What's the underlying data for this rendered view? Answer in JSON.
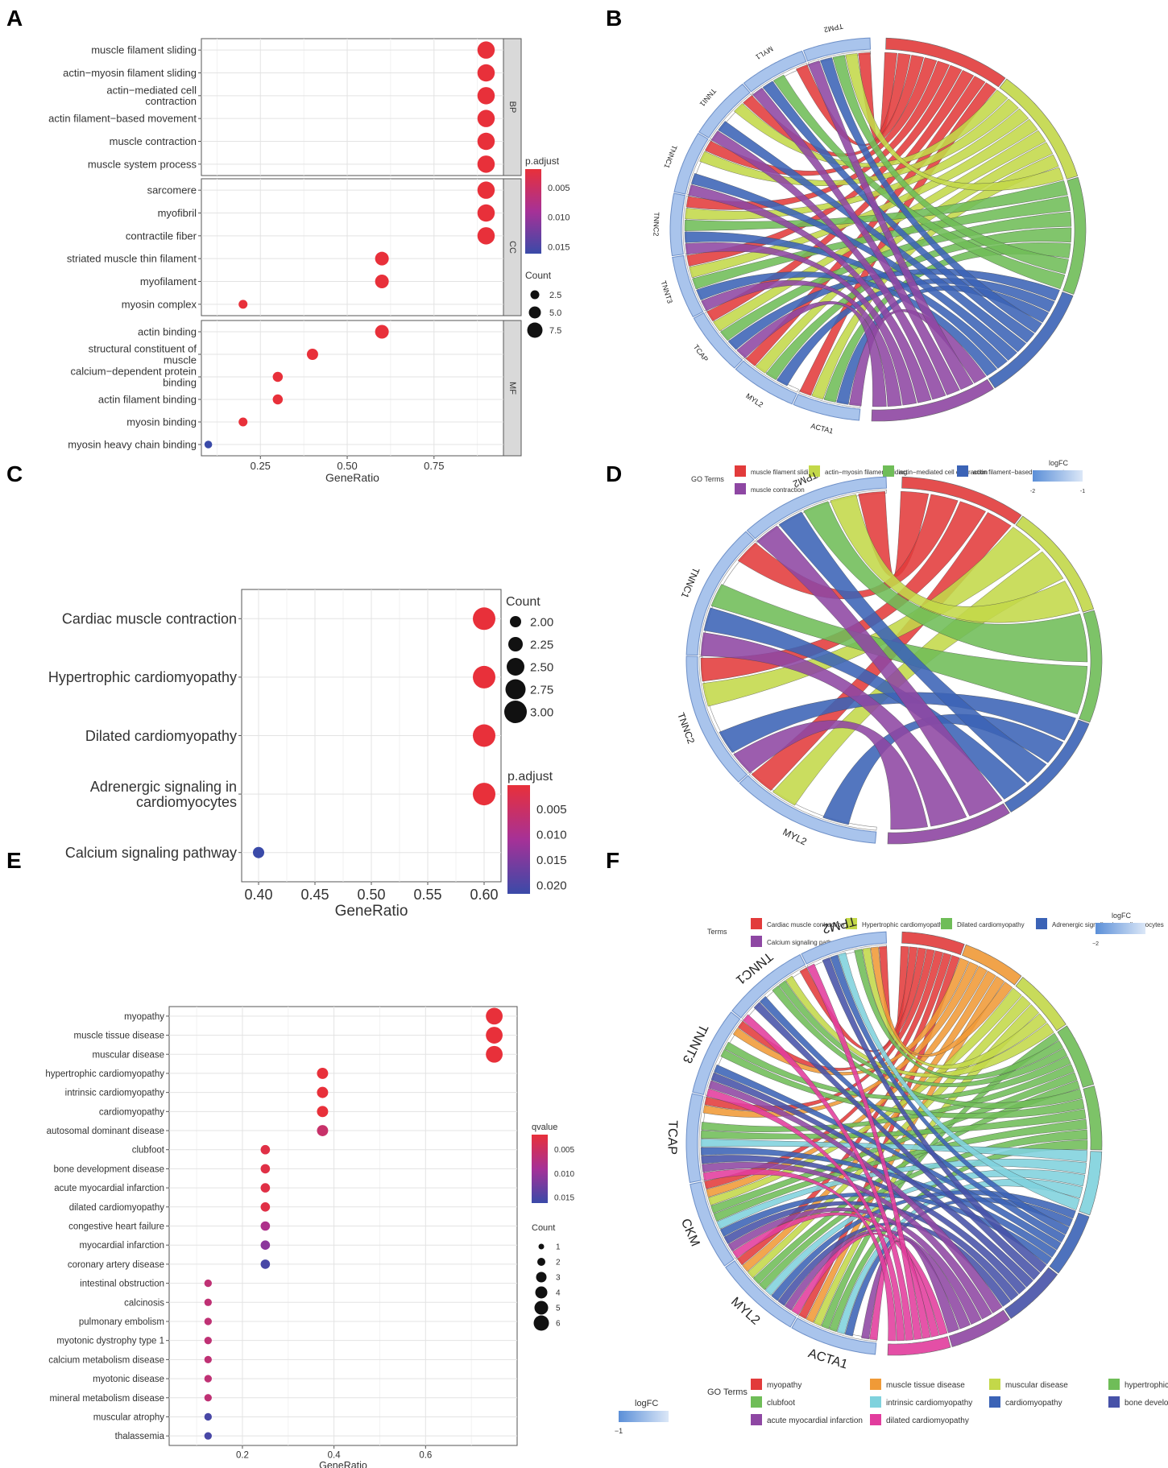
{
  "panel_labels": [
    "A",
    "B",
    "C",
    "D",
    "E",
    "F"
  ],
  "chart_data": [
    {
      "panel": "A",
      "type": "scatter",
      "subtype": "dotplot-faceted",
      "xlabel": "GeneRatio",
      "xticks": [
        0.25,
        0.5,
        0.75
      ],
      "xtick_labels": [
        "0.25",
        "0.50",
        "0.75"
      ],
      "xlim": [
        0.08,
        0.95
      ],
      "facets": [
        {
          "name": "BP",
          "terms": [
            {
              "label": [
                "muscle filament sliding"
              ],
              "x": 0.9,
              "count": 9,
              "padj": 0.002
            },
            {
              "label": [
                "actin−myosin filament sliding"
              ],
              "x": 0.9,
              "count": 9,
              "padj": 0.002
            },
            {
              "label": [
                "actin−mediated cell",
                "contraction"
              ],
              "x": 0.9,
              "count": 9,
              "padj": 0.002
            },
            {
              "label": [
                "actin filament−based movement"
              ],
              "x": 0.9,
              "count": 9,
              "padj": 0.002
            },
            {
              "label": [
                "muscle contraction"
              ],
              "x": 0.9,
              "count": 9,
              "padj": 0.002
            },
            {
              "label": [
                "muscle system process"
              ],
              "x": 0.9,
              "count": 9,
              "padj": 0.002
            }
          ]
        },
        {
          "name": "CC",
          "terms": [
            {
              "label": [
                "sarcomere"
              ],
              "x": 0.9,
              "count": 9,
              "padj": 0.002
            },
            {
              "label": [
                "myofibril"
              ],
              "x": 0.9,
              "count": 9,
              "padj": 0.002
            },
            {
              "label": [
                "contractile fiber"
              ],
              "x": 0.9,
              "count": 9,
              "padj": 0.002
            },
            {
              "label": [
                "striated muscle thin filament"
              ],
              "x": 0.6,
              "count": 6,
              "padj": 0.002
            },
            {
              "label": [
                "myofilament"
              ],
              "x": 0.6,
              "count": 6,
              "padj": 0.002
            },
            {
              "label": [
                "myosin complex"
              ],
              "x": 0.2,
              "count": 2,
              "padj": 0.002
            }
          ]
        },
        {
          "name": "MF",
          "terms": [
            {
              "label": [
                "actin binding"
              ],
              "x": 0.6,
              "count": 6,
              "padj": 0.002
            },
            {
              "label": [
                "structural constituent of",
                "muscle"
              ],
              "x": 0.4,
              "count": 4,
              "padj": 0.002
            },
            {
              "label": [
                "calcium−dependent protein",
                "binding"
              ],
              "x": 0.3,
              "count": 3,
              "padj": 0.002
            },
            {
              "label": [
                "actin filament binding"
              ],
              "x": 0.3,
              "count": 3,
              "padj": 0.002
            },
            {
              "label": [
                "myosin binding"
              ],
              "x": 0.2,
              "count": 2,
              "padj": 0.002
            },
            {
              "label": [
                "myosin heavy chain binding"
              ],
              "x": 0.1,
              "count": 1,
              "padj": 0.016
            }
          ]
        }
      ],
      "color_legend": {
        "title": "p.adjust",
        "ticks": [
          "0.005",
          "0.010",
          "0.015"
        ]
      },
      "size_legend": {
        "title": "Count",
        "ticks": [
          "2.5",
          "5.0",
          "7.5"
        ]
      }
    },
    {
      "panel": "B",
      "type": "chord",
      "genes": [
        "TPM2",
        "MYL1",
        "TNNI1",
        "TNNC1",
        "TNNC2",
        "TNNT3",
        "TCAP",
        "MYL2",
        "ACTA1"
      ],
      "terms": [
        "muscle filament sliding",
        "actin−myosin filament sliding",
        "actin−mediated cell contraction",
        "actin filament−based movement",
        "muscle contraction"
      ],
      "term_colors": [
        "#e23b3b",
        "#c3d849",
        "#6fbd58",
        "#3b63b6",
        "#8e47a3"
      ],
      "legend_title": "GO Terms",
      "logfc_title": "logFC",
      "logfc_ticks": [
        "-2",
        "-1"
      ]
    },
    {
      "panel": "C",
      "type": "scatter",
      "subtype": "dotplot",
      "xlabel": "GeneRatio",
      "xticks": [
        0.4,
        0.45,
        0.5,
        0.55,
        0.6
      ],
      "xtick_labels": [
        "0.40",
        "0.45",
        "0.50",
        "0.55",
        "0.60"
      ],
      "xlim": [
        0.385,
        0.615
      ],
      "terms": [
        {
          "label": [
            "Cardiac muscle contraction"
          ],
          "x": 0.6,
          "count": 3,
          "padj": 0.002
        },
        {
          "label": [
            "Hypertrophic cardiomyopathy"
          ],
          "x": 0.6,
          "count": 3,
          "padj": 0.002
        },
        {
          "label": [
            "Dilated cardiomyopathy"
          ],
          "x": 0.6,
          "count": 3,
          "padj": 0.002
        },
        {
          "label": [
            "Adrenergic signaling in",
            "cardiomyocytes"
          ],
          "x": 0.6,
          "count": 3,
          "padj": 0.002
        },
        {
          "label": [
            "Calcium signaling pathway"
          ],
          "x": 0.4,
          "count": 2,
          "padj": 0.022
        }
      ],
      "size_legend": {
        "title": "Count",
        "ticks": [
          "2.00",
          "2.25",
          "2.50",
          "2.75",
          "3.00"
        ]
      },
      "color_legend": {
        "title": "p.adjust",
        "ticks": [
          "0.005",
          "0.010",
          "0.015",
          "0.020"
        ]
      }
    },
    {
      "panel": "D",
      "type": "chord",
      "genes": [
        "TPM2",
        "TNNC1",
        "TNNC2",
        "MYL2"
      ],
      "terms": [
        "Cardiac muscle contraction",
        "Hypertrophic cardiomyopathy",
        "Dilated cardiomyopathy",
        "Adrenergic signaling in cardiomyocytes",
        "Calcium signaling pathway"
      ],
      "term_colors": [
        "#e23b3b",
        "#c3d849",
        "#6fbd58",
        "#3b63b6",
        "#8e47a3"
      ],
      "legend_title": "Terms",
      "logfc_title": "logFC",
      "logfc_ticks": [
        "−2"
      ]
    },
    {
      "panel": "E",
      "type": "scatter",
      "subtype": "dotplot",
      "xlabel": "GeneRatio",
      "xticks": [
        0.2,
        0.4,
        0.6
      ],
      "xtick_labels": [
        "0.2",
        "0.4",
        "0.6"
      ],
      "xlim": [
        0.04,
        0.8
      ],
      "terms": [
        {
          "label": [
            "myopathy"
          ],
          "x": 0.75,
          "count": 6,
          "q": 0.001
        },
        {
          "label": [
            "muscle tissue disease"
          ],
          "x": 0.75,
          "count": 6,
          "q": 0.001
        },
        {
          "label": [
            "muscular disease"
          ],
          "x": 0.75,
          "count": 6,
          "q": 0.001
        },
        {
          "label": [
            "hypertrophic cardiomyopathy"
          ],
          "x": 0.375,
          "count": 3,
          "q": 0.001
        },
        {
          "label": [
            "intrinsic cardiomyopathy"
          ],
          "x": 0.375,
          "count": 3,
          "q": 0.001
        },
        {
          "label": [
            "cardiomyopathy"
          ],
          "x": 0.375,
          "count": 3,
          "q": 0.001
        },
        {
          "label": [
            "autosomal dominant disease"
          ],
          "x": 0.375,
          "count": 3,
          "q": 0.005
        },
        {
          "label": [
            "clubfoot"
          ],
          "x": 0.25,
          "count": 2,
          "q": 0.002
        },
        {
          "label": [
            "bone development disease"
          ],
          "x": 0.25,
          "count": 2,
          "q": 0.002
        },
        {
          "label": [
            "acute myocardial infarction"
          ],
          "x": 0.25,
          "count": 2,
          "q": 0.002
        },
        {
          "label": [
            "dilated cardiomyopathy"
          ],
          "x": 0.25,
          "count": 2,
          "q": 0.002
        },
        {
          "label": [
            "congestive heart failure"
          ],
          "x": 0.25,
          "count": 2,
          "q": 0.008
        },
        {
          "label": [
            "myocardial infarction"
          ],
          "x": 0.25,
          "count": 2,
          "q": 0.011
        },
        {
          "label": [
            "coronary artery disease"
          ],
          "x": 0.25,
          "count": 2,
          "q": 0.016
        },
        {
          "label": [
            "intestinal obstruction"
          ],
          "x": 0.125,
          "count": 1,
          "q": 0.006
        },
        {
          "label": [
            "calcinosis"
          ],
          "x": 0.125,
          "count": 1,
          "q": 0.006
        },
        {
          "label": [
            "pulmonary embolism"
          ],
          "x": 0.125,
          "count": 1,
          "q": 0.006
        },
        {
          "label": [
            "myotonic dystrophy type 1"
          ],
          "x": 0.125,
          "count": 1,
          "q": 0.006
        },
        {
          "label": [
            "calcium metabolism disease"
          ],
          "x": 0.125,
          "count": 1,
          "q": 0.006
        },
        {
          "label": [
            "myotonic disease"
          ],
          "x": 0.125,
          "count": 1,
          "q": 0.006
        },
        {
          "label": [
            "mineral metabolism disease"
          ],
          "x": 0.125,
          "count": 1,
          "q": 0.006
        },
        {
          "label": [
            "muscular atrophy"
          ],
          "x": 0.125,
          "count": 1,
          "q": 0.016
        },
        {
          "label": [
            "thalassemia"
          ],
          "x": 0.125,
          "count": 1,
          "q": 0.016
        }
      ],
      "color_legend": {
        "title": "qvalue",
        "ticks": [
          "0.005",
          "0.010",
          "0.015"
        ]
      },
      "size_legend": {
        "title": "Count",
        "ticks": [
          "1",
          "2",
          "3",
          "4",
          "5",
          "6"
        ]
      }
    },
    {
      "panel": "F",
      "type": "chord",
      "genes": [
        "TPM2",
        "TNNC1",
        "TNNT3",
        "TCAP",
        "CKM",
        "MYL2",
        "ACTA1"
      ],
      "terms": [
        "myopathy",
        "muscle tissue disease",
        "muscular disease",
        "hypertrophic cardiomyop",
        "clubfoot",
        "intrinsic cardiomyopathy",
        "cardiomyopathy",
        "bone development disea",
        "acute myocardial infarction",
        "dilated cardiomyopathy"
      ],
      "term_colors": [
        "#e23b3b",
        "#f09a37",
        "#c3d849",
        "#6fbd58",
        "#6fbd58",
        "#7fd2dd",
        "#3b63b6",
        "#4752a8",
        "#8e47a3",
        "#e23c9d"
      ],
      "legend_title": "GO Terms",
      "logfc_title": "logFC",
      "logfc_ticks": [
        "−1"
      ]
    }
  ]
}
